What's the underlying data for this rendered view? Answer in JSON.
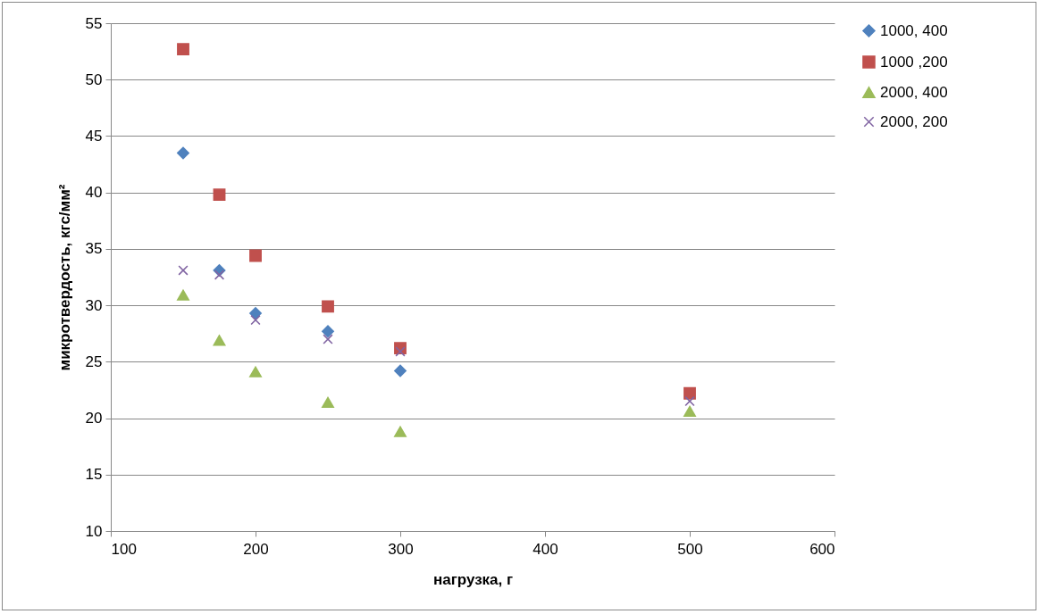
{
  "chart_data": {
    "type": "scatter",
    "xlabel": "нагрузка, г",
    "ylabel": "микротвердость, кгс/мм²",
    "x": [
      150,
      175,
      200,
      250,
      300,
      500
    ],
    "series": [
      {
        "name": "1000, 400",
        "color": "#4f81bd",
        "marker": "diamond",
        "values": [
          43.5,
          33.1,
          29.3,
          27.7,
          24.2,
          null
        ]
      },
      {
        "name": "1000 ,200",
        "color": "#c0504d",
        "marker": "square",
        "values": [
          52.7,
          39.8,
          34.4,
          29.9,
          26.2,
          22.2
        ]
      },
      {
        "name": "2000, 400",
        "color": "#9bbb59",
        "marker": "triangle",
        "values": [
          30.9,
          26.9,
          24.1,
          21.4,
          18.8,
          20.6
        ]
      },
      {
        "name": "2000, 200",
        "color": "#8064a2",
        "marker": "cross",
        "values": [
          33.1,
          32.7,
          28.7,
          27.0,
          25.9,
          21.5
        ]
      }
    ],
    "xlim": [
      100,
      600
    ],
    "xticks": [
      100,
      200,
      300,
      400,
      500,
      600
    ],
    "ylim": [
      10,
      55
    ],
    "yticks": [
      10,
      15,
      20,
      25,
      30,
      35,
      40,
      45,
      50,
      55
    ],
    "grid": "y",
    "legend": "right"
  }
}
